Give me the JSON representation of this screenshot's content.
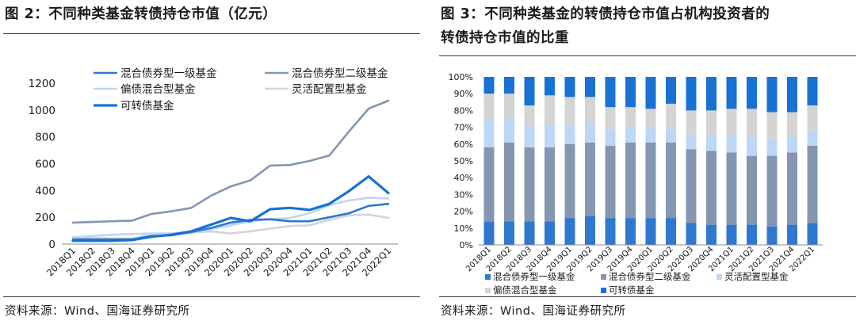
{
  "left": {
    "title": "图 2：不同种类基金转债持仓市值（亿元）",
    "source": "资料来源：Wind、国海证券研究所"
  },
  "right": {
    "title_line1": "图 3：不同种类基金的转债持仓市值占机构投资者的",
    "title_line2": "转债持仓市值的比重",
    "source": "资料来源：Wind、国海证券研究所"
  },
  "chart_data": [
    {
      "type": "line",
      "title": "不同种类基金转债持仓市值（亿元）",
      "categories": [
        "2018Q1",
        "2018Q2",
        "2018Q3",
        "2018Q4",
        "2019Q1",
        "2019Q2",
        "2019Q3",
        "2019Q4",
        "2020Q1",
        "2020Q2",
        "2020Q3",
        "2020Q4",
        "2021Q1",
        "2021Q2",
        "2021Q3",
        "2021Q4",
        "2022Q1"
      ],
      "ylim": [
        0,
        1200
      ],
      "yticks": [
        0,
        200,
        400,
        600,
        800,
        1000,
        1200
      ],
      "grid": false,
      "legend": "top",
      "series": [
        {
          "name": "混合债券型一级基金",
          "color": "#2f78d0",
          "values": [
            35,
            35,
            35,
            35,
            60,
            65,
            90,
            120,
            160,
            180,
            185,
            170,
            170,
            200,
            230,
            285,
            300
          ]
        },
        {
          "name": "混合债券型二级基金",
          "color": "#8496b0",
          "values": [
            160,
            165,
            170,
            175,
            225,
            245,
            270,
            360,
            430,
            475,
            585,
            590,
            620,
            660,
            840,
            1010,
            1070
          ]
        },
        {
          "name": "偏债混合型基金",
          "color": "#bcd7f5",
          "values": [
            50,
            60,
            70,
            75,
            80,
            80,
            90,
            110,
            140,
            170,
            185,
            195,
            230,
            290,
            325,
            345,
            340
          ]
        },
        {
          "name": "灵活配置型基金",
          "color": "#d4d4d4",
          "values": [
            50,
            45,
            40,
            40,
            75,
            80,
            85,
            95,
            80,
            95,
            115,
            135,
            140,
            180,
            215,
            220,
            195
          ]
        },
        {
          "name": "可转债基金",
          "color": "#1772d4",
          "values": [
            25,
            25,
            25,
            30,
            55,
            70,
            95,
            145,
            195,
            170,
            260,
            270,
            255,
            300,
            395,
            505,
            380
          ]
        }
      ]
    },
    {
      "type": "bar",
      "stacked": true,
      "title": "不同种类基金的转债持仓市值占机构投资者的转债持仓市值的比重",
      "categories": [
        "2018Q1",
        "2018Q2",
        "2018Q3",
        "2018Q4",
        "2019Q1",
        "2019Q2",
        "2019Q3",
        "2019Q4",
        "2020Q1",
        "2020Q2",
        "2020Q3",
        "2020Q4",
        "2021Q1",
        "2021Q2",
        "2021Q3",
        "2021Q4",
        "2022Q1"
      ],
      "ylim": [
        0,
        100
      ],
      "yticks": [
        "0%",
        "10%",
        "20%",
        "30%",
        "40%",
        "50%",
        "60%",
        "70%",
        "80%",
        "90%",
        "100%"
      ],
      "grid": false,
      "legend": "bottom",
      "series": [
        {
          "name": "混合债券型一级基金",
          "color": "#2f78d0",
          "values": [
            14,
            14,
            14,
            14,
            16,
            17,
            16,
            16,
            16,
            16,
            13,
            12,
            12,
            12,
            11,
            12,
            13
          ]
        },
        {
          "name": "混合债券型二级基金",
          "color": "#8496b0",
          "values": [
            44,
            47,
            44,
            44,
            44,
            44,
            43,
            45,
            45,
            45,
            44,
            44,
            43,
            41,
            42,
            43,
            46
          ]
        },
        {
          "name": "灵活配置型基金",
          "color": "#bcd7f5",
          "values": [
            16,
            15,
            13,
            13,
            11,
            11,
            10,
            9,
            9,
            8,
            8,
            9,
            10,
            11,
            10,
            9,
            9
          ]
        },
        {
          "name": "偏债混合型基金",
          "color": "#d4d4d4",
          "values": [
            16,
            14,
            12,
            18,
            17,
            16,
            13,
            12,
            11,
            15,
            15,
            15,
            16,
            17,
            16,
            15,
            15
          ]
        },
        {
          "name": "可转债基金",
          "color": "#1772d4",
          "values": [
            10,
            10,
            17,
            11,
            12,
            12,
            18,
            18,
            19,
            16,
            20,
            20,
            19,
            19,
            21,
            21,
            17
          ]
        }
      ]
    }
  ]
}
